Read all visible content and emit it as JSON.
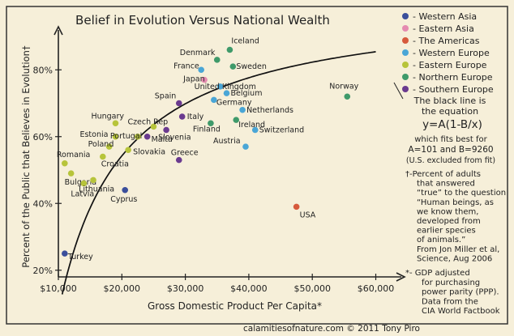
{
  "chart_data": {
    "type": "scatter",
    "title": "Belief in Evolution Versus National Wealth",
    "xlabel": "Gross Domestic Product Per Capita*",
    "ylabel": "Percent of the Public that Believes in Evolution†",
    "xlim": [
      10000,
      63000
    ],
    "ylim": [
      18,
      90
    ],
    "x_ticks": [
      {
        "value": 10000,
        "label": "$10,000"
      },
      {
        "value": 20000,
        "label": "$20,000"
      },
      {
        "value": 30000,
        "label": "$30,000"
      },
      {
        "value": 40000,
        "label": "$40,000"
      },
      {
        "value": 50000,
        "label": "$50,000"
      },
      {
        "value": 60000,
        "label": "$60,000"
      }
    ],
    "y_ticks": [
      {
        "value": 20,
        "label": "20%"
      },
      {
        "value": 40,
        "label": "40%"
      },
      {
        "value": 60,
        "label": "60%"
      },
      {
        "value": 80,
        "label": "80%"
      }
    ],
    "legend_position": "right",
    "series": [
      {
        "name": "Western Asia",
        "color": "#3b4f9b",
        "points": [
          {
            "label": "Turkey",
            "x": 11000,
            "y": 25
          },
          {
            "label": "Cyprus",
            "x": 20500,
            "y": 44
          }
        ]
      },
      {
        "name": "Eastern Asia",
        "color": "#e58ab0",
        "points": [
          {
            "label": "Japan",
            "x": 33000,
            "y": 77
          }
        ]
      },
      {
        "name": "The Americas",
        "color": "#d65a3c",
        "points": [
          {
            "label": "USA",
            "x": 47500,
            "y": 39
          }
        ]
      },
      {
        "name": "Western Europe",
        "color": "#4aa6d6",
        "points": [
          {
            "label": "France",
            "x": 32500,
            "y": 80
          },
          {
            "label": "United Kingdom",
            "x": 35500,
            "y": 75
          },
          {
            "label": "Belgium",
            "x": 36500,
            "y": 73
          },
          {
            "label": "Germany",
            "x": 34500,
            "y": 71
          },
          {
            "label": "Netherlands",
            "x": 39000,
            "y": 68
          },
          {
            "label": "Switzerland",
            "x": 41000,
            "y": 62
          },
          {
            "label": "Austria",
            "x": 39500,
            "y": 57
          }
        ]
      },
      {
        "name": "Eastern Europe",
        "color": "#b7c43a",
        "points": [
          {
            "label": "Hungary",
            "x": 19000,
            "y": 64
          },
          {
            "label": "Estonia",
            "x": 19000,
            "y": 60
          },
          {
            "label": "Poland",
            "x": 18000,
            "y": 57
          },
          {
            "label": "Romania",
            "x": 11000,
            "y": 52
          },
          {
            "label": "Bulgaria",
            "x": 12000,
            "y": 49
          },
          {
            "label": "Latvia",
            "x": 14000,
            "y": 46
          },
          {
            "label": "Lithuania",
            "x": 15500,
            "y": 47
          },
          {
            "label": "Slovakia",
            "x": 21000,
            "y": 56
          },
          {
            "label": "Czech Rep",
            "x": 25000,
            "y": 63
          },
          {
            "label": "Portugal",
            "x": 22500,
            "y": 60
          },
          {
            "label": "Croatia",
            "x": 17000,
            "y": 54
          }
        ]
      },
      {
        "name": "Northern Europe",
        "color": "#3f9a6a",
        "points": [
          {
            "label": "Iceland",
            "x": 37000,
            "y": 86
          },
          {
            "label": "Denmark",
            "x": 35000,
            "y": 83
          },
          {
            "label": "Sweden",
            "x": 37500,
            "y": 81
          },
          {
            "label": "Norway",
            "x": 55500,
            "y": 72
          },
          {
            "label": "Finland",
            "x": 34000,
            "y": 64
          },
          {
            "label": "Ireland",
            "x": 38000,
            "y": 65
          }
        ]
      },
      {
        "name": "Southern Europe",
        "color": "#6a3a8f",
        "points": [
          {
            "label": "Spain",
            "x": 29000,
            "y": 70
          },
          {
            "label": "Italy",
            "x": 29500,
            "y": 66
          },
          {
            "label": "Slovenia",
            "x": 27000,
            "y": 62
          },
          {
            "label": "Malta",
            "x": 24000,
            "y": 60
          },
          {
            "label": "Greece",
            "x": 29000,
            "y": 53
          }
        ]
      }
    ],
    "fit": {
      "equation": "y=A(1-B/x)",
      "A": 101,
      "B": 9260,
      "x_from": 10600,
      "x_to": 60000
    },
    "annotations": {
      "fit_note": [
        "The black line is",
        "the equation",
        "y=A(1-B/x)",
        "which fits best for",
        "A=101 and B=9260",
        "(U.S. excluded from fit)"
      ],
      "dagger_note": [
        "†-Percent of adults",
        "that answered",
        "“true” to the question",
        "“Human beings, as",
        "we know them,",
        "developed from",
        "earlier species",
        "of animals.”",
        "From Jon Miller et al,",
        "Science, Aug 2006"
      ],
      "star_note": [
        "*- GDP adjusted",
        "for purchasing",
        "power parity (PPP).",
        "Data from the",
        "CIA World Factbook"
      ],
      "credit": "calamitiesofnature.com © 2011 Tony Piro"
    }
  }
}
